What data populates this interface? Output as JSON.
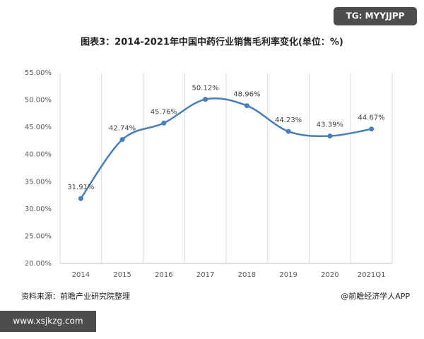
{
  "chart_data": {
    "type": "line",
    "title": "图表3：2014-2021年中国中药行业销售毛利率变化(单位：%)",
    "categories": [
      "2014",
      "2015",
      "2016",
      "2017",
      "2018",
      "2019",
      "2020",
      "2021Q1"
    ],
    "series": [
      {
        "color": "#4a7ebb",
        "values": [
          31.91,
          42.74,
          45.76,
          50.12,
          48.96,
          44.23,
          43.39,
          44.67
        ],
        "value_labels": [
          "31.91%",
          "42.74%",
          "45.76%",
          "50.12%",
          "48.96%",
          "44.23%",
          "43.39%",
          "44.67%"
        ]
      }
    ],
    "smooth": true,
    "ylim": [
      20,
      55
    ],
    "yticks": [
      {
        "value": 20,
        "label": "20.00%"
      },
      {
        "value": 25,
        "label": "25.00%"
      },
      {
        "value": 30,
        "label": "30.00%"
      },
      {
        "value": 35,
        "label": "35.00%"
      },
      {
        "value": 40,
        "label": "40.00%"
      },
      {
        "value": 45,
        "label": "45.00%"
      },
      {
        "value": 50,
        "label": "50.00%"
      },
      {
        "value": 55,
        "label": "55.00%"
      }
    ],
    "grid": "x",
    "source": "资料来源：前瞻产业研究院整理",
    "credit": "@前瞻经济学人APP"
  },
  "watermark": "TG: MYYJJPP",
  "site": "www.xsjkzg.com"
}
